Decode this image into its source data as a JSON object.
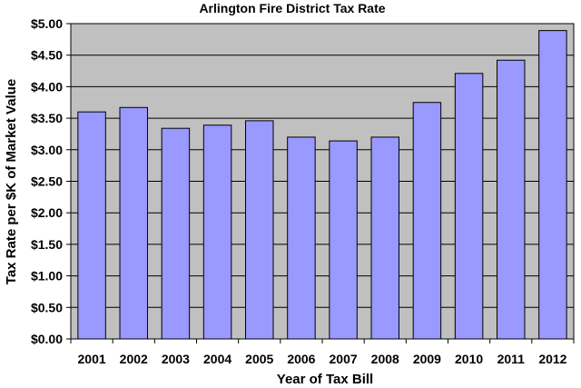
{
  "chart_data": {
    "type": "bar",
    "title": "Arlington Fire District Tax Rate",
    "xlabel": "Year of Tax Bill",
    "ylabel": "Tax Rate per $K of Market Value",
    "categories": [
      "2001",
      "2002",
      "2003",
      "2004",
      "2005",
      "2006",
      "2007",
      "2008",
      "2009",
      "2010",
      "2011",
      "2012"
    ],
    "values": [
      3.6,
      3.67,
      3.34,
      3.39,
      3.46,
      3.2,
      3.14,
      3.2,
      3.75,
      4.21,
      4.42,
      4.89
    ],
    "ylim": [
      0,
      5.0
    ],
    "yticks": [
      0,
      0.5,
      1.0,
      1.5,
      2.0,
      2.5,
      3.0,
      3.5,
      4.0,
      4.5,
      5.0
    ],
    "ytick_labels": [
      "$0.00",
      "$0.50",
      "$1.00",
      "$1.50",
      "$2.00",
      "$2.50",
      "$3.00",
      "$3.50",
      "$4.00",
      "$4.50",
      "$5.00"
    ],
    "grid": true,
    "legend": "none",
    "colors": {
      "bar_fill": "#9999ff",
      "bar_stroke": "#000000",
      "plot_background": "#c0c0c0",
      "gridline": "#000000"
    }
  }
}
